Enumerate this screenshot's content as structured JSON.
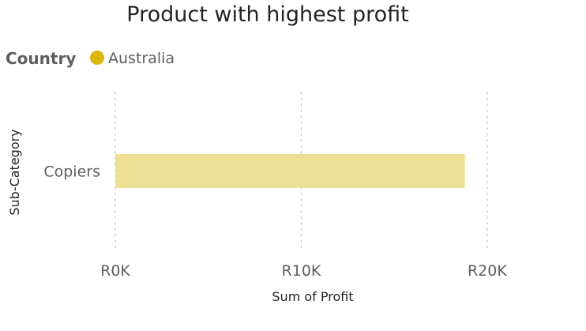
{
  "chart_data": {
    "type": "bar",
    "orientation": "horizontal",
    "title": "Product with highest profit",
    "legend": {
      "title": "Country",
      "placement": "top-left",
      "entries": [
        {
          "name": "Australia",
          "color": "#DBB60F"
        }
      ]
    },
    "categories": [
      "Copiers"
    ],
    "series": [
      {
        "name": "Australia",
        "values": [
          18800
        ],
        "color": "#EEDF96"
      }
    ],
    "xlabel": "Sum of Profit",
    "ylabel": "Sub-Category",
    "xlim": [
      0,
      22000
    ],
    "xticks": [
      0,
      10000,
      20000
    ],
    "xtick_labels": [
      "R0K",
      "R10K",
      "R20K"
    ],
    "grid": "vertical-dotted"
  },
  "colors": {
    "title_text": "#252423",
    "axis_text": "#605E5C",
    "legend_title_text": "#605E5C",
    "gridline": "#C8C6C4",
    "bar": "#EEDF96",
    "legend_dot": "#DBB60F"
  }
}
